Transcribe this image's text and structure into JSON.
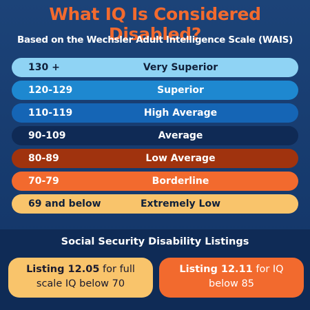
{
  "header": {
    "title": "What IQ Is Considered Disabled?",
    "subtitle": "Based on the Wechsler Adult Intelligence Scale (WAIS)"
  },
  "rows": [
    {
      "range": "130 +",
      "label": "Very Superior"
    },
    {
      "range": "120-129",
      "label": "Superior"
    },
    {
      "range": "110-119",
      "label": "High Average"
    },
    {
      "range": "90-109",
      "label": "Average"
    },
    {
      "range": "80-89",
      "label": "Low Average"
    },
    {
      "range": "70-79",
      "label": "Borderline"
    },
    {
      "range": "69 and below",
      "label": "Extremely Low"
    }
  ],
  "listings": {
    "title": "Social Security Disability Listings",
    "boxes": [
      {
        "bold": "Listing 12.05",
        "text": "for full scale IQ below 70"
      },
      {
        "bold": "Listing 12.11",
        "text": "for IQ below 85"
      }
    ]
  }
}
